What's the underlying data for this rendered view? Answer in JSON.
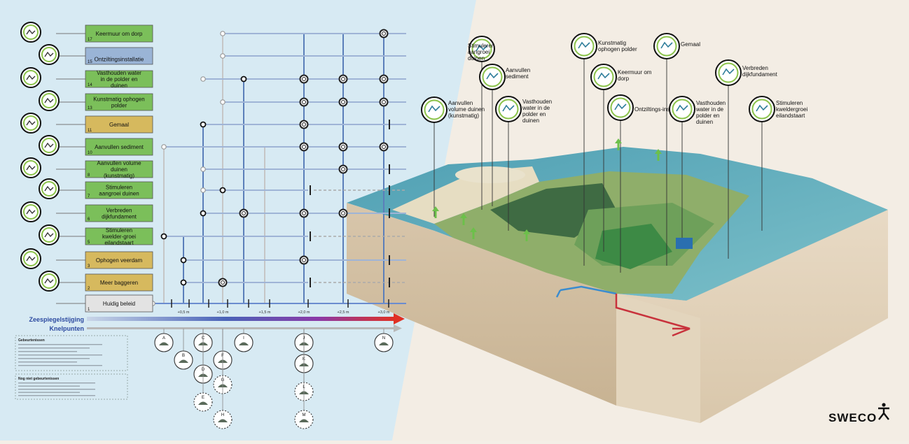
{
  "measures": [
    {
      "num": "17",
      "label": "Keermuur om dorp",
      "fill": "#7bbf5a",
      "icon": "village-wall-icon"
    },
    {
      "num": "15",
      "label": "Ontziltingsinstallatie",
      "fill": "#9ab4d6",
      "icon": "desalination-icon"
    },
    {
      "num": "14",
      "label": "Vasthouden water in de polder en duinen",
      "fill": "#7bbf5a",
      "icon": "water-retention-icon"
    },
    {
      "num": "13",
      "label": "Kunstmatig ophogen polder",
      "fill": "#7bbf5a",
      "icon": "raise-polder-icon"
    },
    {
      "num": "11",
      "label": "Gemaal",
      "fill": "#d6b95e",
      "icon": "pumping-station-icon"
    },
    {
      "num": "10",
      "label": "Aanvullen sediment",
      "fill": "#7bbf5a",
      "icon": "sediment-icon"
    },
    {
      "num": "8",
      "label": "Aanvullen volume duinen (kunstmatig)",
      "fill": "#7bbf5a",
      "icon": "dune-volume-icon"
    },
    {
      "num": "7",
      "label": "Stimuleren aangroei duinen",
      "fill": "#7bbf5a",
      "icon": "dune-growth-icon"
    },
    {
      "num": "6",
      "label": "Verbreden dijkfundament",
      "fill": "#7bbf5a",
      "icon": "dike-widening-icon"
    },
    {
      "num": "5",
      "label": "Stimuleren kwelder-groei eilandstaart",
      "fill": "#7bbf5a",
      "icon": "salt-marsh-icon"
    },
    {
      "num": "3",
      "label": "Ophogen veerdam",
      "fill": "#d6b95e",
      "icon": "ferry-dam-icon"
    },
    {
      "num": "2",
      "label": "Meer baggeren",
      "fill": "#d6b95e",
      "icon": "dredging-icon"
    },
    {
      "num": "1",
      "label": "Huidig beleid",
      "fill": "#e3e3e3",
      "icon": ""
    }
  ],
  "axis": {
    "title": "Zeespiegelstijging",
    "ticks": [
      "+0,5 m",
      "+1,0 m",
      "+1,5 m",
      "+2,0 m",
      "+2,5 m",
      "+3,0 m"
    ],
    "knelpunten_title": "Knelpunten",
    "knelpunt_letters": [
      "A",
      "B",
      "C",
      "D",
      "E",
      "F",
      "G",
      "H",
      "I",
      "J",
      "K",
      "L",
      "M",
      "N"
    ]
  },
  "legend": {
    "heading1": "Gebeurtenissen",
    "heading2": "Nog niet gebeurtenissen"
  },
  "callouts": [
    {
      "id": "aanvullen-volume",
      "label": "Aanvullen volume duinen (kunstmatig)"
    },
    {
      "id": "stimuleren-aangroei",
      "label": "Stimuleren aangroei duinen"
    },
    {
      "id": "aanvullen-sediment",
      "label": "Aanvullen sediment"
    },
    {
      "id": "vasthouden-water-1",
      "label": "Vasthouden water in de polder en duinen"
    },
    {
      "id": "kunstmatig-ophogen",
      "label": "Kunstmatig ophogen polder"
    },
    {
      "id": "keermuur",
      "label": "Keermuur om dorp"
    },
    {
      "id": "ontziltings",
      "label": "Ontziltings-installatie"
    },
    {
      "id": "gemaal",
      "label": "Gemaal"
    },
    {
      "id": "vasthouden-water-2",
      "label": "Vasthouden water in de polder en duinen"
    },
    {
      "id": "verbreden",
      "label": "Verbreden dijkfundament"
    },
    {
      "id": "stimuleren-kwelder",
      "label": "Stimuleren kweldergroei eilandstaart"
    }
  ],
  "brand": {
    "name": "SWECO"
  },
  "colors": {
    "green": "#7bbf5a",
    "blue_box": "#9ab4d6",
    "gold": "#d6b95e",
    "grey_box": "#e3e3e3",
    "sea": "#d9ebf3",
    "axis_start": "#a0b8d8",
    "axis_end": "#d83a2e"
  }
}
